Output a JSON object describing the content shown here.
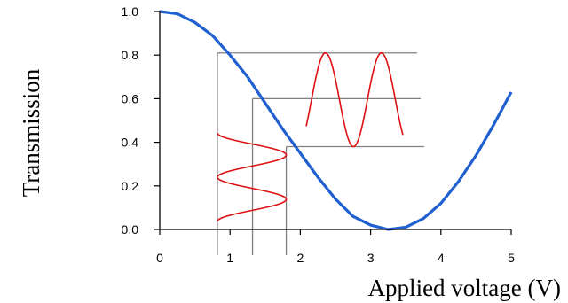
{
  "chart_data": {
    "type": "line",
    "xlabel": "Applied voltage (V)",
    "ylabel": "Transmission",
    "xlim": [
      0,
      5
    ],
    "ylim": [
      0,
      1
    ],
    "x_ticks": [
      "0",
      "1",
      "2",
      "3",
      "4",
      "5"
    ],
    "y_ticks": [
      "0.0",
      "0.2",
      "0.4",
      "0.6",
      "0.8",
      "1.0"
    ],
    "grid": false,
    "legend": "none",
    "series": [
      {
        "x": [
          0.0,
          0.25,
          0.5,
          0.75,
          1.0,
          1.25,
          1.5,
          1.75,
          2.0,
          2.25,
          2.5,
          2.75,
          3.0,
          3.25,
          3.5,
          3.75,
          4.0,
          4.25,
          4.5,
          4.75,
          5.0
        ],
        "y": [
          1.0,
          0.99,
          0.95,
          0.89,
          0.8,
          0.7,
          0.58,
          0.46,
          0.35,
          0.24,
          0.14,
          0.06,
          0.02,
          0.0,
          0.01,
          0.05,
          0.12,
          0.22,
          0.34,
          0.48,
          0.63
        ],
        "color": "#1f5fcf"
      }
    ],
    "annotations": {
      "bias_points_x": [
        0.82,
        1.32,
        1.8
      ],
      "bias_points_y": [
        0.81,
        0.6,
        0.38
      ],
      "input_modulation_color": "#e01010",
      "output_modulation_color": "#e01010",
      "guide_line_color": "#7f7f7f"
    }
  }
}
